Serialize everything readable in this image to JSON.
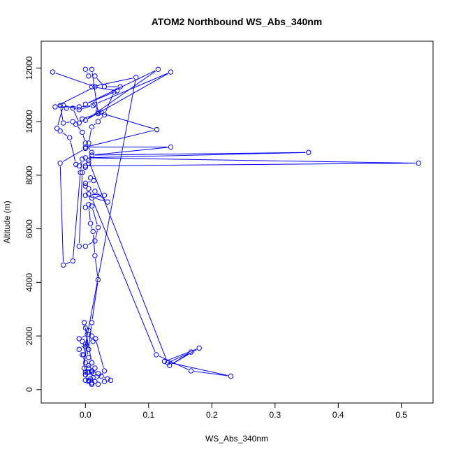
{
  "chart_data": {
    "type": "line",
    "title": "ATOM2 Northbound WS_Abs_340nm",
    "xlabel": "WS_Abs_340nm",
    "ylabel": "Altitude (m)",
    "xlim": [
      -0.07,
      0.55
    ],
    "ylim": [
      -500,
      13000
    ],
    "x_ticks": [
      0.0,
      0.1,
      0.2,
      0.3,
      0.4,
      0.5
    ],
    "x_tick_labels": [
      "0.0",
      "0.1",
      "0.2",
      "0.3",
      "0.4",
      "0.5"
    ],
    "y_ticks": [
      0,
      2000,
      4000,
      6000,
      8000,
      10000,
      12000
    ],
    "y_tick_labels": [
      "0",
      "2000",
      "4000",
      "6000",
      "8000",
      "10000",
      "12000"
    ],
    "grid": false,
    "colors": {
      "series": "#0000ff",
      "axes": "#000000"
    },
    "series": [
      {
        "x": [
          -0.052,
          0.015,
          -0.048,
          -0.01,
          0.012,
          -0.01,
          -0.035,
          -0.045,
          -0.04,
          -0.025,
          -0.015,
          -0.01,
          -0.005,
          -0.008,
          -0.02,
          -0.035,
          -0.04,
          0.0,
          0.005,
          0.01,
          0.02,
          0.03,
          0.045,
          0.055,
          0.03,
          0.015,
          0.005,
          0.0,
          0.01,
          0.02,
          0.025,
          -0.005,
          -0.01,
          -0.02,
          -0.03,
          -0.04,
          -0.035,
          -0.02,
          -0.015,
          -0.005,
          0.0,
          0.01,
          0.005,
          0.0,
          -0.005,
          -0.01,
          0.0,
          0.015,
          0.02,
          0.01,
          0.0,
          0.005,
          0.008,
          0.012,
          0.015,
          0.02,
          0.01,
          0.005,
          0.0,
          -0.005,
          -0.01,
          0.003,
          -0.002,
          0.0,
          0.005,
          0.01,
          0.02,
          0.03,
          0.04,
          0.035,
          0.025,
          0.013,
          0.01,
          0.005,
          0.0,
          -0.005,
          -0.01,
          0.0,
          0.005,
          0.01,
          0.015,
          0.02,
          0.012,
          0.008,
          0.0,
          0.003,
          0.005,
          0.01,
          -0.002,
          0.0,
          0.005,
          0.01,
          0.012,
          0.016,
          0.03,
          0.015,
          0.01,
          0.005,
          0.0,
          0.005,
          0.01,
          0.0,
          -0.003,
          0.08,
          0.01,
          0.05,
          0.0,
          0.115,
          0.0,
          0.135,
          0.015,
          0.02,
          0.113,
          0.0,
          0.135,
          0.01,
          0.353,
          0.0,
          0.527,
          0.0,
          0.005,
          0.13,
          0.167,
          0.133,
          0.18,
          0.125,
          0.23,
          0.167,
          0.112,
          0.01,
          0.03,
          0.005,
          0.0,
          0.035,
          0.015,
          0.005,
          0.0,
          0.0,
          0.013,
          0.008
        ],
        "y": [
          11850,
          11300,
          10550,
          10550,
          10600,
          10450,
          10600,
          9750,
          9650,
          9400,
          8400,
          8350,
          8600,
          8100,
          4800,
          4650,
          8450,
          9000,
          9200,
          9800,
          10000,
          10250,
          11100,
          11300,
          11300,
          11700,
          11700,
          11950,
          11950,
          10300,
          10350,
          10100,
          9950,
          10500,
          10500,
          10600,
          9950,
          10000,
          9900,
          9600,
          9200,
          8850,
          8450,
          8300,
          8100,
          5350,
          5350,
          5550,
          6050,
          6850,
          6800,
          6900,
          6200,
          5900,
          5000,
          4100,
          2500,
          1500,
          1600,
          1800,
          1900,
          2050,
          800,
          550,
          300,
          250,
          200,
          300,
          350,
          400,
          500,
          600,
          700,
          900,
          1000,
          1300,
          1500,
          1700,
          1200,
          1000,
          800,
          600,
          450,
          400,
          350,
          650,
          800,
          1000,
          2500,
          2300,
          2200,
          2000,
          1800,
          1900,
          700,
          300,
          200,
          350,
          550,
          650,
          650,
          650,
          1300,
          11650,
          11300,
          11150,
          10650,
          11950,
          10050,
          11850,
          10650,
          10350,
          9700,
          9050,
          9050,
          8750,
          8850,
          8650,
          8450,
          8350,
          8550,
          1000,
          1400,
          900,
          1550,
          1050,
          500,
          700,
          1300,
          7150,
          7250,
          7300,
          7250,
          7000,
          7400,
          7500,
          7600,
          7700,
          7800,
          7900
        ]
      }
    ]
  }
}
